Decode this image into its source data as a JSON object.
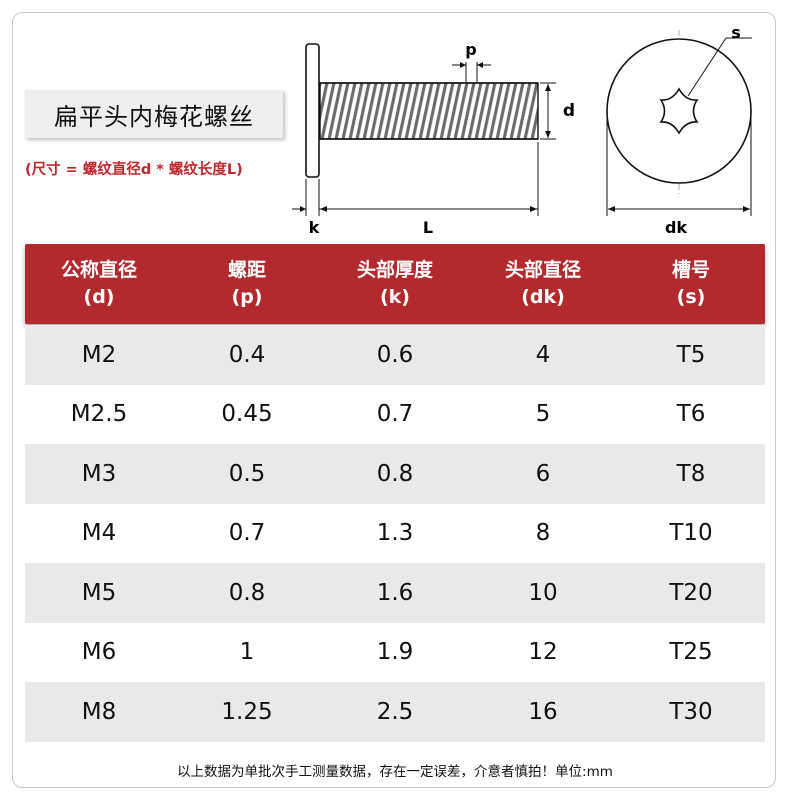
{
  "title": "扁平头内梅花螺丝",
  "subtitle": "(尺寸 = 螺纹直径d * 螺纹长度L)",
  "diagram_labels": {
    "p": "p",
    "d": "d",
    "k": "k",
    "L": "L",
    "s": "s",
    "dk": "dk"
  },
  "table": {
    "headers": [
      {
        "name": "公称直径",
        "symbol": "(d)"
      },
      {
        "name": "螺距",
        "symbol": "(p)"
      },
      {
        "name": "头部厚度",
        "symbol": "(k)"
      },
      {
        "name": "头部直径",
        "symbol": "(dk)"
      },
      {
        "name": "槽号",
        "symbol": "(s)"
      }
    ],
    "rows": [
      [
        "M2",
        "0.4",
        "0.6",
        "4",
        "T5"
      ],
      [
        "M2.5",
        "0.45",
        "0.7",
        "5",
        "T6"
      ],
      [
        "M3",
        "0.5",
        "0.8",
        "6",
        "T8"
      ],
      [
        "M4",
        "0.7",
        "1.3",
        "8",
        "T10"
      ],
      [
        "M5",
        "0.8",
        "1.6",
        "10",
        "T20"
      ],
      [
        "M6",
        "1",
        "1.9",
        "12",
        "T25"
      ],
      [
        "M8",
        "1.25",
        "2.5",
        "16",
        "T30"
      ]
    ]
  },
  "footer": "以上数据为单批次手工测量数据，存在一定误差，介意者慎拍！单位:mm",
  "colors": {
    "header_red": "#b22a2d",
    "subtitle_red": "#c0282d",
    "row_shade": "#e9e9e9"
  }
}
